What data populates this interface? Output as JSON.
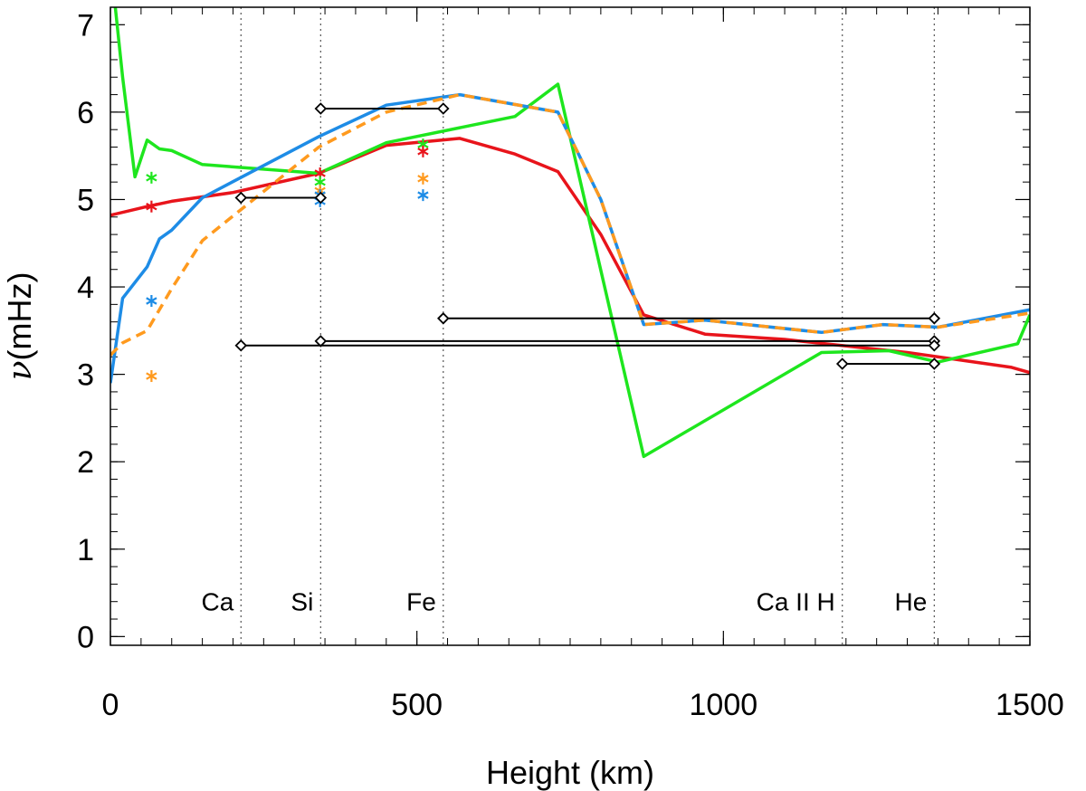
{
  "chart_data": {
    "type": "line",
    "title": "",
    "xlabel": "Height (km)",
    "ylabel_symbol": "ν",
    "ylabel": "(mHz)",
    "xlim": [
      0,
      1500
    ],
    "ylim": [
      -0.1,
      7.2
    ],
    "x_ticks": [
      0,
      500,
      1000,
      1500
    ],
    "y_ticks": [
      0,
      1,
      2,
      3,
      4,
      5,
      6,
      7
    ],
    "x_minor_step": 50,
    "y_minor_step": 0.2,
    "colors": {
      "red": "#e8141b",
      "green": "#1ee61e",
      "blue": "#1e8ce6",
      "orange": "#ff9a1e",
      "black": "#000000",
      "guide": "#555555"
    },
    "series": [
      {
        "name": "red",
        "color": "#e8141b",
        "dashed": false,
        "x": [
          0,
          60,
          100,
          200,
          340,
          450,
          570,
          660,
          730,
          800,
          870,
          970,
          1100,
          1300,
          1400,
          1470,
          1500
        ],
        "y": [
          4.82,
          4.92,
          4.98,
          5.08,
          5.3,
          5.62,
          5.7,
          5.52,
          5.32,
          4.6,
          3.68,
          3.46,
          3.4,
          3.25,
          3.15,
          3.08,
          3.02
        ]
      },
      {
        "name": "green",
        "color": "#1ee61e",
        "dashed": false,
        "x": [
          8,
          20,
          40,
          60,
          80,
          100,
          150,
          340,
          450,
          660,
          730,
          870,
          1160,
          1270,
          1350,
          1480,
          1500
        ],
        "y": [
          7.2,
          6.4,
          5.26,
          5.68,
          5.58,
          5.56,
          5.4,
          5.3,
          5.65,
          5.95,
          6.32,
          2.06,
          3.25,
          3.27,
          3.14,
          3.35,
          3.68
        ]
      },
      {
        "name": "blue",
        "color": "#1e8ce6",
        "dashed": false,
        "x": [
          0,
          20,
          60,
          80,
          100,
          150,
          340,
          450,
          570,
          730,
          800,
          870,
          970,
          1160,
          1260,
          1350,
          1500
        ],
        "y": [
          2.9,
          3.87,
          4.23,
          4.55,
          4.65,
          5.02,
          5.72,
          6.08,
          6.2,
          6.0,
          5.0,
          3.57,
          3.62,
          3.48,
          3.57,
          3.54,
          3.74
        ]
      },
      {
        "name": "orange",
        "color": "#ff9a1e",
        "dashed": true,
        "x": [
          0,
          20,
          60,
          100,
          150,
          340,
          450,
          570,
          730,
          800,
          870,
          970,
          1160,
          1260,
          1350,
          1500
        ],
        "y": [
          3.22,
          3.36,
          3.5,
          3.98,
          4.53,
          5.6,
          6.0,
          6.2,
          6.0,
          5.0,
          3.57,
          3.62,
          3.48,
          3.57,
          3.54,
          3.7
        ]
      }
    ],
    "star_markers": [
      {
        "x": 67,
        "y": 5.25,
        "series": "green"
      },
      {
        "x": 67,
        "y": 4.92,
        "series": "red"
      },
      {
        "x": 67,
        "y": 3.84,
        "series": "blue"
      },
      {
        "x": 67,
        "y": 2.98,
        "series": "orange"
      },
      {
        "x": 342,
        "y": 5.3,
        "series": "red"
      },
      {
        "x": 342,
        "y": 5.2,
        "series": "green"
      },
      {
        "x": 342,
        "y": 5.1,
        "series": "orange"
      },
      {
        "x": 342,
        "y": 5.05,
        "series": "blue"
      },
      {
        "x": 342,
        "y": 4.98,
        "series": "blue"
      },
      {
        "x": 510,
        "y": 5.63,
        "series": "green"
      },
      {
        "x": 510,
        "y": 5.55,
        "series": "red"
      },
      {
        "x": 510,
        "y": 5.24,
        "series": "orange"
      },
      {
        "x": 510,
        "y": 5.05,
        "series": "blue"
      }
    ],
    "range_bars": [
      {
        "x1": 343,
        "x2": 543,
        "y": 6.04
      },
      {
        "x1": 213,
        "x2": 343,
        "y": 5.02
      },
      {
        "x1": 543,
        "x2": 1344,
        "y": 3.64
      },
      {
        "x1": 343,
        "x2": 1344,
        "y": 3.38
      },
      {
        "x1": 213,
        "x2": 1344,
        "y": 3.33
      },
      {
        "x1": 1194,
        "x2": 1344,
        "y": 3.12
      }
    ],
    "vertical_guides": [
      {
        "x": 213,
        "label": "Ca"
      },
      {
        "x": 343,
        "label": "Si"
      },
      {
        "x": 543,
        "label": "Fe"
      },
      {
        "x": 1194,
        "label": "Ca II H"
      },
      {
        "x": 1344,
        "label": "He"
      }
    ],
    "guide_label_y": 0.3
  }
}
